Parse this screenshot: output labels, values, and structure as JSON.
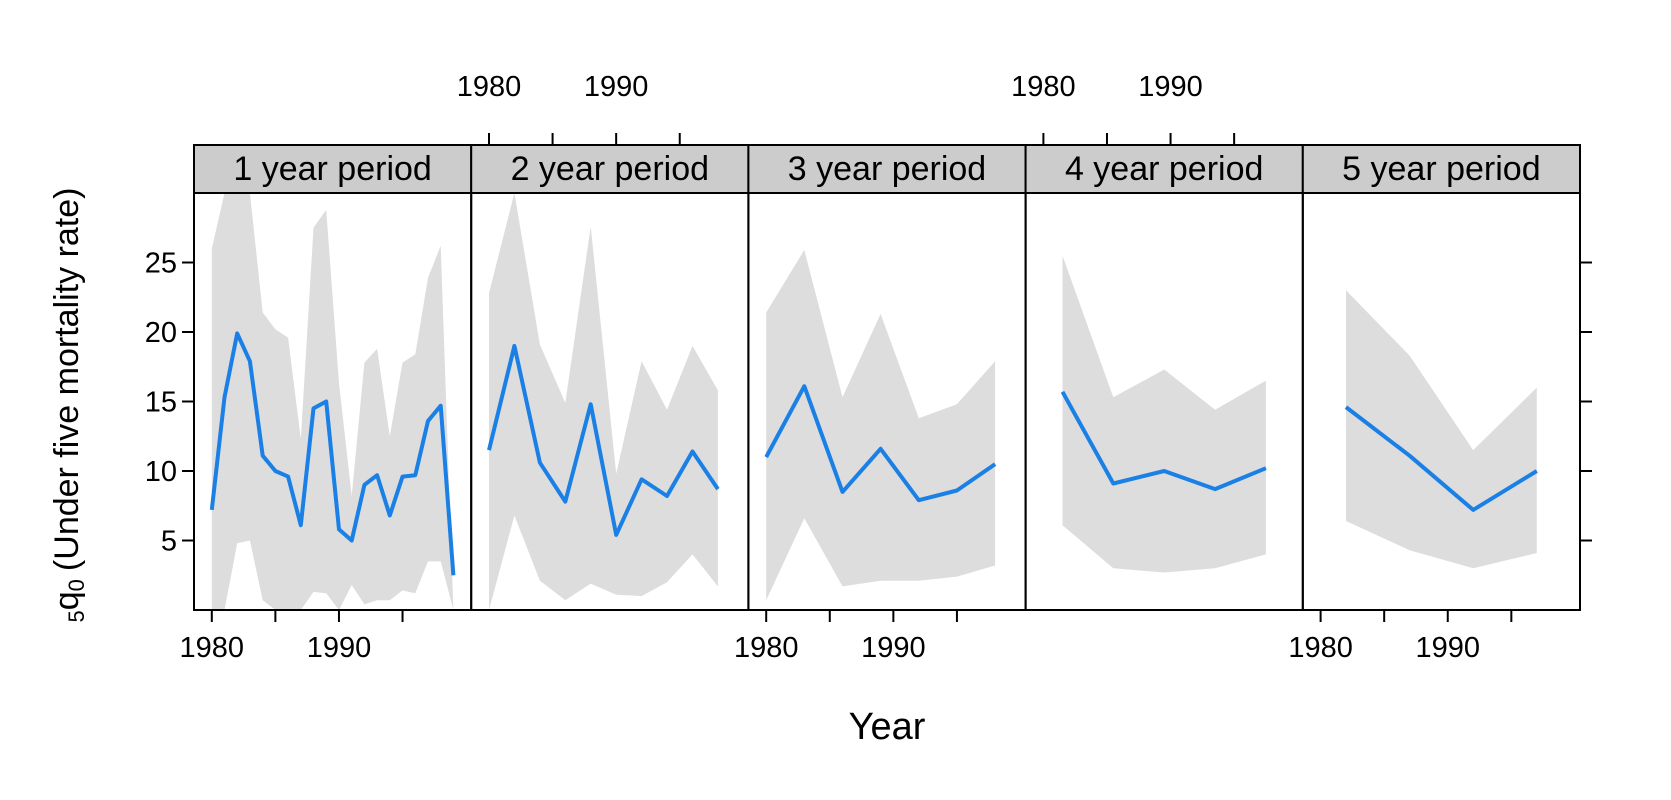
{
  "chart_data": {
    "type": "line",
    "xlabel": "Year",
    "ylabel_main": "(Under five mortality rate)",
    "ylabel_symbol": "q",
    "ylabel_sub_left": "5",
    "ylabel_sub_right": "0",
    "xlim": [
      1978.6,
      2000.4
    ],
    "ylim": [
      0,
      30
    ],
    "x_ticks": [
      1980,
      1985,
      1990,
      1995
    ],
    "x_tick_labels": [
      {
        "value": 1980,
        "label": "1980"
      },
      {
        "value": 1990,
        "label": "1990"
      }
    ],
    "y_ticks": [
      5,
      10,
      15,
      20,
      25
    ],
    "y_tick_labels": [
      "5",
      "10",
      "15",
      "20",
      "25"
    ],
    "line_color": "#1a80e6",
    "band_color": "#dddddd",
    "strip_color": "#cccccc",
    "panels": [
      {
        "title": "1 year period",
        "x": [
          1980,
          1981,
          1982,
          1983,
          1984,
          1985,
          1986,
          1987,
          1988,
          1989,
          1990,
          1991,
          1992,
          1993,
          1994,
          1995,
          1996,
          1997,
          1998,
          1999
        ],
        "y": [
          7.2,
          15.3,
          19.9,
          17.9,
          11.1,
          10.0,
          9.6,
          6.1,
          14.5,
          15.0,
          5.8,
          5.0,
          9.0,
          9.7,
          6.8,
          9.6,
          9.7,
          13.6,
          14.7,
          2.5
        ],
        "lower": [
          0,
          0,
          4.8,
          5.0,
          0.7,
          0,
          0,
          0,
          1.3,
          1.2,
          0,
          1.8,
          0.4,
          0.7,
          0.7,
          1.4,
          1.2,
          3.5,
          3.5,
          0
        ],
        "upper": [
          26,
          30,
          30,
          30,
          21.4,
          20.2,
          19.6,
          12.3,
          27.5,
          28.8,
          16.3,
          8.2,
          17.8,
          18.8,
          12.5,
          17.8,
          18.4,
          23.9,
          26.2,
          0
        ]
      },
      {
        "title": "2 year period",
        "x": [
          1980,
          1982,
          1984,
          1986,
          1988,
          1990,
          1992,
          1994,
          1996,
          1998
        ],
        "y": [
          11.5,
          19.0,
          10.6,
          7.8,
          14.8,
          5.4,
          9.4,
          8.2,
          11.4,
          8.7
        ],
        "lower": [
          0,
          6.8,
          2.1,
          0.7,
          1.9,
          1.1,
          1.0,
          2.0,
          4.0,
          1.7
        ],
        "upper": [
          22.8,
          30,
          19.1,
          14.9,
          27.6,
          9.8,
          17.9,
          14.4,
          19.0,
          15.8
        ]
      },
      {
        "title": "3 year period",
        "x": [
          1980,
          1983,
          1986,
          1989,
          1992,
          1995,
          1998
        ],
        "y": [
          11.0,
          16.1,
          8.5,
          11.6,
          7.9,
          8.6,
          10.5
        ],
        "lower": [
          0.7,
          6.6,
          1.7,
          2.1,
          2.1,
          2.4,
          3.2
        ],
        "upper": [
          21.4,
          25.9,
          15.3,
          21.3,
          13.8,
          14.8,
          17.9
        ]
      },
      {
        "title": "4 year period",
        "x": [
          1981.5,
          1985.5,
          1989.5,
          1993.5,
          1997.5
        ],
        "y": [
          15.7,
          9.1,
          10.0,
          8.7,
          10.2
        ],
        "lower": [
          6.1,
          3.0,
          2.7,
          3.0,
          4.0
        ],
        "upper": [
          25.5,
          15.3,
          17.3,
          14.4,
          16.5
        ]
      },
      {
        "title": "5 year period",
        "x": [
          1982,
          1987,
          1992,
          1997
        ],
        "y": [
          14.6,
          11.1,
          7.2,
          10.0
        ],
        "lower": [
          6.4,
          4.3,
          3.0,
          4.1
        ],
        "upper": [
          23.0,
          18.3,
          11.5,
          16.0
        ]
      }
    ]
  }
}
